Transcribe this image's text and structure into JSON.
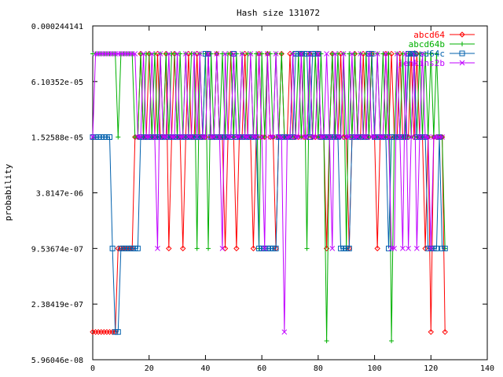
{
  "chart_data": {
    "type": "line",
    "title": "Hash size 131072",
    "xlabel": "",
    "ylabel": "probability",
    "xlim": [
      0,
      140
    ],
    "x_ticks": [
      0,
      20,
      40,
      60,
      80,
      100,
      120,
      140
    ],
    "y_scale": "log",
    "ylim": [
      5.96046e-08,
      0.000244141
    ],
    "y_ticks": [
      "5.96046e-08",
      "2.38419e-07",
      "9.53674e-07",
      "3.8147e-06",
      "1.52588e-05",
      "6.10352e-05",
      "0.000244141"
    ],
    "y_tick_values": [
      5.96046e-08,
      2.38419e-07,
      9.53674e-07,
      3.8147e-06,
      1.52588e-05,
      6.10352e-05,
      0.000244141
    ],
    "grid": false,
    "legend_position": "top-right",
    "series": [
      {
        "name": "abcd64",
        "color": "#ff0000",
        "marker": "diamond",
        "x": [
          0,
          1,
          2,
          3,
          4,
          5,
          6,
          7,
          8,
          9,
          10,
          11,
          12,
          13,
          14,
          15,
          16,
          17,
          18,
          19,
          20,
          21,
          22,
          23,
          24,
          25,
          26,
          27,
          28,
          29,
          30,
          31,
          32,
          33,
          34,
          35,
          36,
          37,
          38,
          39,
          40,
          41,
          42,
          43,
          44,
          45,
          46,
          47,
          48,
          49,
          50,
          51,
          52,
          53,
          54,
          55,
          56,
          57,
          58,
          59,
          60,
          61,
          62,
          63,
          64,
          65,
          66,
          67,
          68,
          69,
          70,
          71,
          72,
          73,
          74,
          75,
          76,
          77,
          78,
          79,
          80,
          81,
          82,
          83,
          84,
          85,
          86,
          87,
          88,
          89,
          90,
          91,
          92,
          93,
          94,
          95,
          96,
          97,
          98,
          99,
          100,
          101,
          102,
          103,
          104,
          105,
          106,
          107,
          108,
          109,
          110,
          111,
          112,
          113,
          114,
          115,
          116,
          117,
          118,
          119,
          120,
          121,
          122,
          123,
          124,
          125
        ],
        "y": [
          1.19e-07,
          1.19e-07,
          1.19e-07,
          1.19e-07,
          1.19e-07,
          1.19e-07,
          1.19e-07,
          1.19e-07,
          1.19e-07,
          9.54e-07,
          9.54e-07,
          9.54e-07,
          9.54e-07,
          9.54e-07,
          9.54e-07,
          1.53e-05,
          1.53e-05,
          0.000122,
          1.53e-05,
          1.53e-05,
          0.000122,
          1.53e-05,
          1.53e-05,
          0.000122,
          1.53e-05,
          1.53e-05,
          0.000122,
          9.54e-07,
          1.53e-05,
          0.000122,
          1.53e-05,
          1.53e-05,
          9.54e-07,
          1.53e-05,
          0.000122,
          1.53e-05,
          1.53e-05,
          0.000122,
          1.53e-05,
          1.53e-05,
          1.53e-05,
          0.000122,
          1.53e-05,
          1.53e-05,
          0.000122,
          1.53e-05,
          1.53e-05,
          9.54e-07,
          1.53e-05,
          0.000122,
          1.53e-05,
          9.54e-07,
          1.53e-05,
          1.53e-05,
          0.000122,
          1.53e-05,
          1.53e-05,
          9.54e-07,
          1.53e-05,
          0.000122,
          1.53e-05,
          1.53e-05,
          0.000122,
          1.53e-05,
          1.53e-05,
          9.54e-07,
          1.53e-05,
          0.000122,
          1.53e-05,
          1.53e-05,
          0.000122,
          1.53e-05,
          1.53e-05,
          1.53e-05,
          0.000122,
          1.53e-05,
          1.53e-05,
          0.000122,
          1.53e-05,
          1.53e-05,
          0.000122,
          1.53e-05,
          1.53e-05,
          9.54e-07,
          1.53e-05,
          0.000122,
          1.53e-05,
          1.53e-05,
          0.000122,
          1.53e-05,
          1.53e-05,
          9.54e-07,
          1.53e-05,
          0.000122,
          1.53e-05,
          1.53e-05,
          0.000122,
          1.53e-05,
          1.53e-05,
          0.000122,
          1.53e-05,
          9.54e-07,
          1.53e-05,
          1.53e-05,
          0.000122,
          1.53e-05,
          0.000122,
          1.53e-05,
          1.53e-05,
          0.000122,
          1.53e-05,
          1.53e-05,
          1.53e-05,
          0.000122,
          1.53e-05,
          0.000122,
          1.53e-05,
          1.53e-05,
          9.54e-07,
          1.53e-05,
          1.19e-07,
          1.53e-05,
          1.53e-05,
          1.53e-05,
          1.53e-05,
          1.19e-07
        ]
      },
      {
        "name": "abcd64b",
        "color": "#00b000",
        "marker": "plus",
        "x": [
          0,
          1,
          2,
          3,
          4,
          5,
          6,
          7,
          8,
          9,
          10,
          11,
          12,
          13,
          14,
          15,
          16,
          17,
          18,
          19,
          20,
          21,
          22,
          23,
          24,
          25,
          26,
          27,
          28,
          29,
          30,
          31,
          32,
          33,
          34,
          35,
          36,
          37,
          38,
          39,
          40,
          41,
          42,
          43,
          44,
          45,
          46,
          47,
          48,
          49,
          50,
          51,
          52,
          53,
          54,
          55,
          56,
          57,
          58,
          59,
          60,
          61,
          62,
          63,
          64,
          65,
          66,
          67,
          68,
          69,
          70,
          71,
          72,
          73,
          74,
          75,
          76,
          77,
          78,
          79,
          80,
          81,
          82,
          83,
          84,
          85,
          86,
          87,
          88,
          89,
          90,
          91,
          92,
          93,
          94,
          95,
          96,
          97,
          98,
          99,
          100,
          101,
          102,
          103,
          104,
          105,
          106,
          107,
          108,
          109,
          110,
          111,
          112,
          113,
          114,
          115,
          116,
          117,
          118,
          119,
          120,
          121,
          122,
          123,
          124,
          125
        ],
        "y": [
          0.000122,
          0.000122,
          0.000122,
          0.000122,
          0.000122,
          0.000122,
          0.000122,
          0.000122,
          0.000122,
          1.53e-05,
          0.000122,
          0.000122,
          0.000122,
          0.000122,
          0.000122,
          1.53e-05,
          1.53e-05,
          0.000122,
          1.53e-05,
          0.000122,
          0.000122,
          1.53e-05,
          0.000122,
          1.53e-05,
          0.000122,
          1.53e-05,
          0.000122,
          1.53e-05,
          0.000122,
          0.000122,
          1.53e-05,
          0.000122,
          1.53e-05,
          0.000122,
          1.53e-05,
          0.000122,
          0.000122,
          9.54e-07,
          0.000122,
          1.53e-05,
          0.000122,
          9.54e-07,
          0.000122,
          1.53e-05,
          0.000122,
          1.53e-05,
          0.000122,
          1.53e-05,
          0.000122,
          0.000122,
          1.53e-05,
          0.000122,
          1.53e-05,
          0.000122,
          1.53e-05,
          0.000122,
          0.000122,
          1.53e-05,
          0.000122,
          9.54e-07,
          0.000122,
          1.53e-05,
          0.000122,
          0.000122,
          1.53e-05,
          0.000122,
          1.53e-05,
          0.000122,
          1.53e-05,
          1.53e-05,
          1.53e-05,
          0.000122,
          1.53e-05,
          0.000122,
          1.53e-05,
          0.000122,
          9.54e-07,
          0.000122,
          1.53e-05,
          0.000122,
          1.53e-05,
          0.000122,
          1.53e-05,
          9.54e-08,
          1.53e-05,
          0.000122,
          1.53e-05,
          0.000122,
          1.53e-05,
          0.000122,
          9.54e-07,
          0.000122,
          1.53e-05,
          0.000122,
          1.53e-05,
          0.000122,
          1.53e-05,
          0.000122,
          1.53e-05,
          0.000122,
          1.53e-05,
          0.000122,
          1.53e-05,
          0.000122,
          1.53e-05,
          0.000122,
          9.54e-08,
          1.53e-05,
          0.000122,
          1.53e-05,
          0.000122,
          1.53e-05,
          0.000122,
          1.53e-05,
          0.000122,
          1.53e-05,
          0.000122,
          1.53e-05,
          0.000122,
          1.53e-05,
          0.000122,
          1.53e-05,
          0.000122,
          1.53e-05,
          1.53e-05,
          9.54e-07
        ]
      },
      {
        "name": "abcd64c",
        "color": "#0060ad",
        "marker": "square",
        "x": [
          0,
          1,
          2,
          3,
          4,
          5,
          6,
          7,
          8,
          9,
          10,
          11,
          12,
          13,
          14,
          15,
          16,
          17,
          18,
          19,
          20,
          21,
          22,
          23,
          24,
          25,
          26,
          27,
          28,
          29,
          30,
          31,
          32,
          33,
          34,
          35,
          36,
          37,
          38,
          39,
          40,
          41,
          42,
          43,
          44,
          45,
          46,
          47,
          48,
          49,
          50,
          51,
          52,
          53,
          54,
          55,
          56,
          57,
          58,
          59,
          60,
          61,
          62,
          63,
          64,
          65,
          66,
          67,
          68,
          69,
          70,
          71,
          72,
          73,
          74,
          75,
          76,
          77,
          78,
          79,
          80,
          81,
          82,
          83,
          84,
          85,
          86,
          87,
          88,
          89,
          90,
          91,
          92,
          93,
          94,
          95,
          96,
          97,
          98,
          99,
          100,
          101,
          102,
          103,
          104,
          105,
          106,
          107,
          108,
          109,
          110,
          111,
          112,
          113,
          114,
          115,
          116,
          117,
          118,
          119,
          120,
          121,
          122,
          123,
          124,
          125
        ],
        "y": [
          1.53e-05,
          1.53e-05,
          1.53e-05,
          1.53e-05,
          1.53e-05,
          1.53e-05,
          1.53e-05,
          9.54e-07,
          1.19e-07,
          1.19e-07,
          9.54e-07,
          9.54e-07,
          9.54e-07,
          9.54e-07,
          9.54e-07,
          9.54e-07,
          9.54e-07,
          1.53e-05,
          1.53e-05,
          1.53e-05,
          1.53e-05,
          1.53e-05,
          1.53e-05,
          1.53e-05,
          1.53e-05,
          1.53e-05,
          1.53e-05,
          1.53e-05,
          1.53e-05,
          1.53e-05,
          1.53e-05,
          1.53e-05,
          1.53e-05,
          1.53e-05,
          1.53e-05,
          1.53e-05,
          1.53e-05,
          1.53e-05,
          1.53e-05,
          1.53e-05,
          0.000122,
          0.000122,
          1.53e-05,
          1.53e-05,
          1.53e-05,
          1.53e-05,
          1.53e-05,
          1.53e-05,
          1.53e-05,
          1.53e-05,
          0.000122,
          1.53e-05,
          1.53e-05,
          1.53e-05,
          1.53e-05,
          1.53e-05,
          1.53e-05,
          1.53e-05,
          1.53e-05,
          9.54e-07,
          9.54e-07,
          9.54e-07,
          9.54e-07,
          9.54e-07,
          9.54e-07,
          9.54e-07,
          1.53e-05,
          1.53e-05,
          1.53e-05,
          1.53e-05,
          1.53e-05,
          1.53e-05,
          0.000122,
          0.000122,
          0.000122,
          0.000122,
          0.000122,
          1.53e-05,
          0.000122,
          0.000122,
          0.000122,
          1.53e-05,
          1.53e-05,
          1.53e-05,
          1.53e-05,
          1.53e-05,
          1.53e-05,
          1.53e-05,
          9.54e-07,
          9.54e-07,
          9.54e-07,
          9.54e-07,
          1.53e-05,
          1.53e-05,
          1.53e-05,
          1.53e-05,
          1.53e-05,
          1.53e-05,
          0.000122,
          0.000122,
          1.53e-05,
          1.53e-05,
          1.53e-05,
          1.53e-05,
          1.53e-05,
          9.54e-07,
          1.53e-05,
          1.53e-05,
          1.53e-05,
          1.53e-05,
          1.53e-05,
          1.53e-05,
          0.000122,
          0.000122,
          0.000122,
          1.53e-05,
          1.53e-05,
          1.53e-05,
          1.53e-05,
          9.54e-07,
          9.54e-07,
          9.54e-07,
          9.54e-07,
          1.53e-05,
          9.54e-07,
          9.54e-07
        ]
      },
      {
        "name": "jenkins2b",
        "color": "#c000ff",
        "marker": "cross",
        "x": [
          0,
          1,
          2,
          3,
          4,
          5,
          6,
          7,
          8,
          9,
          10,
          11,
          12,
          13,
          14,
          15,
          16,
          17,
          18,
          19,
          20,
          21,
          22,
          23,
          24,
          25,
          26,
          27,
          28,
          29,
          30,
          31,
          32,
          33,
          34,
          35,
          36,
          37,
          38,
          39,
          40,
          41,
          42,
          43,
          44,
          45,
          46,
          47,
          48,
          49,
          50,
          51,
          52,
          53,
          54,
          55,
          56,
          57,
          58,
          59,
          60,
          61,
          62,
          63,
          64,
          65,
          66,
          67,
          68,
          69,
          70,
          71,
          72,
          73,
          74,
          75,
          76,
          77,
          78,
          79,
          80,
          81,
          82,
          83,
          84,
          85,
          86,
          87,
          88,
          89,
          90,
          91,
          92,
          93,
          94,
          95,
          96,
          97,
          98,
          99,
          100,
          101,
          102,
          103,
          104,
          105,
          106,
          107,
          108,
          109,
          110,
          111,
          112,
          113,
          114,
          115,
          116,
          117,
          118,
          119,
          120,
          121,
          122,
          123,
          124
        ],
        "y": [
          1.53e-05,
          0.000122,
          0.000122,
          0.000122,
          0.000122,
          0.000122,
          0.000122,
          0.000122,
          0.000122,
          0.000122,
          0.000122,
          0.000122,
          0.000122,
          0.000122,
          0.000122,
          0.000122,
          1.53e-05,
          1.53e-05,
          0.000122,
          1.53e-05,
          1.53e-05,
          0.000122,
          1.53e-05,
          9.54e-07,
          0.000122,
          1.53e-05,
          1.53e-05,
          0.000122,
          1.53e-05,
          1.53e-05,
          0.000122,
          1.53e-05,
          1.53e-05,
          0.000122,
          1.53e-05,
          1.53e-05,
          0.000122,
          1.53e-05,
          0.000122,
          1.53e-05,
          1.53e-05,
          0.000122,
          1.53e-05,
          1.53e-05,
          0.000122,
          1.53e-05,
          9.54e-07,
          0.000122,
          1.53e-05,
          1.53e-05,
          0.000122,
          1.53e-05,
          1.53e-05,
          0.000122,
          1.53e-05,
          1.53e-05,
          0.000122,
          1.53e-05,
          1.53e-05,
          0.000122,
          1.53e-05,
          9.54e-07,
          0.000122,
          1.53e-05,
          1.53e-05,
          0.000122,
          1.53e-05,
          1.53e-05,
          1.19e-07,
          1.53e-05,
          1.53e-05,
          0.000122,
          1.53e-05,
          1.53e-05,
          0.000122,
          1.53e-05,
          1.53e-05,
          0.000122,
          1.53e-05,
          1.53e-05,
          0.000122,
          1.53e-05,
          1.53e-05,
          0.000122,
          1.53e-05,
          9.54e-07,
          0.000122,
          1.53e-05,
          1.53e-05,
          0.000122,
          1.53e-05,
          1.53e-05,
          0.000122,
          1.53e-05,
          1.53e-05,
          0.000122,
          1.53e-05,
          1.53e-05,
          0.000122,
          1.53e-05,
          1.53e-05,
          0.000122,
          1.53e-05,
          1.53e-05,
          0.000122,
          1.53e-05,
          9.54e-07,
          9.54e-07,
          0.000122,
          1.53e-05,
          9.54e-07,
          0.000122,
          9.54e-07,
          1.53e-05,
          0.000122,
          9.54e-07,
          1.53e-05,
          0.000122,
          1.53e-05,
          1.53e-05,
          9.54e-07,
          1.53e-05,
          1.53e-05,
          1.53e-05,
          1.53e-05
        ]
      }
    ]
  }
}
